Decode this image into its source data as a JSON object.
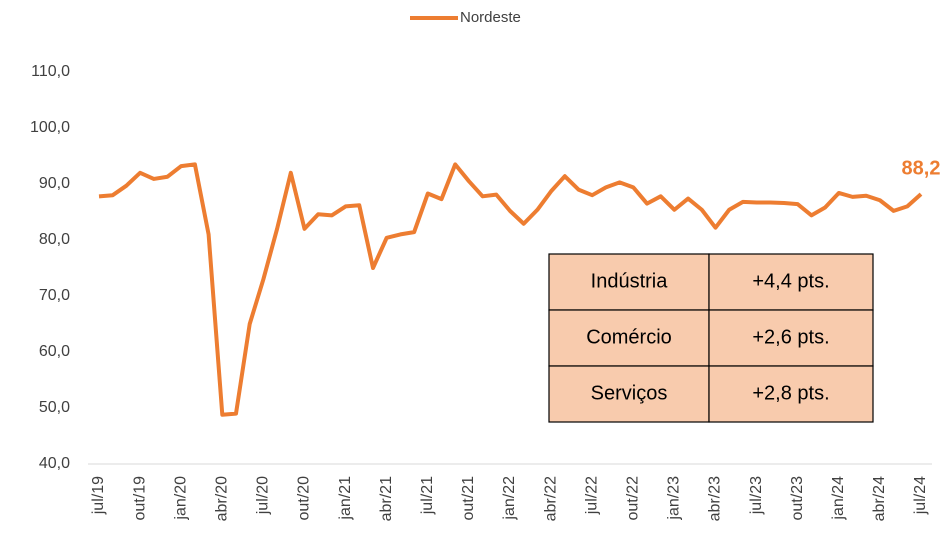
{
  "chart_data": {
    "type": "line",
    "categories": [
      "jul/19",
      null,
      null,
      "out/19",
      null,
      null,
      "jan/20",
      null,
      null,
      "abr/20",
      null,
      null,
      "jul/20",
      null,
      null,
      "out/20",
      null,
      null,
      "jan/21",
      null,
      null,
      "abr/21",
      null,
      null,
      "jul/21",
      null,
      null,
      "out/21",
      null,
      null,
      "jan/22",
      null,
      null,
      "abr/22",
      null,
      null,
      "jul/22",
      null,
      null,
      "out/22",
      null,
      null,
      "jan/23",
      null,
      null,
      "abr/23",
      null,
      null,
      "jul/23",
      null,
      null,
      "out/23",
      null,
      null,
      "jan/24",
      null,
      null,
      "abr/24",
      null,
      null,
      "jul/24"
    ],
    "series": [
      {
        "name": "Nordeste",
        "color": "#ed7d31",
        "values": [
          87.8,
          88,
          89.7,
          92,
          90.9,
          91.3,
          93.2,
          93.5,
          81,
          48.8,
          49,
          65,
          73,
          82,
          92,
          82,
          84.6,
          84.4,
          86,
          86.2,
          75,
          80.4,
          81,
          81.4,
          88.3,
          87.3,
          93.5,
          90.5,
          87.8,
          88.1,
          85.2,
          82.9,
          85.4,
          88.7,
          91.4,
          89,
          88,
          89.4,
          90.3,
          89.4,
          86.5,
          87.8,
          85.4,
          87.4,
          85.4,
          82.2,
          85.4,
          86.8,
          86.7,
          86.7,
          86.6,
          86.4,
          84.4,
          85.8,
          88.4,
          87.7,
          87.9,
          87.1,
          85.2,
          86,
          88.2
        ],
        "value_labels": [
          null,
          null,
          null,
          null,
          null,
          null,
          null,
          null,
          null,
          null,
          null,
          null,
          null,
          null,
          null,
          null,
          null,
          null,
          null,
          null,
          null,
          null,
          null,
          null,
          null,
          null,
          null,
          null,
          null,
          null,
          null,
          null,
          null,
          null,
          null,
          null,
          null,
          null,
          null,
          null,
          null,
          null,
          null,
          null,
          null,
          null,
          null,
          null,
          null,
          null,
          null,
          null,
          null,
          null,
          null,
          null,
          null,
          null,
          null,
          null,
          "88,2"
        ]
      }
    ],
    "ylim": [
      40,
      110
    ],
    "yticks": [
      {
        "value": 40,
        "label": "40,0"
      },
      {
        "value": 50,
        "label": "50,0"
      },
      {
        "value": 60,
        "label": "60,0"
      },
      {
        "value": 70,
        "label": "70,0"
      },
      {
        "value": 80,
        "label": "80,0"
      },
      {
        "value": 90,
        "label": "90,0"
      },
      {
        "value": 100,
        "label": "100,0"
      },
      {
        "value": 110,
        "label": "110,0"
      }
    ],
    "grid": false,
    "legend": "top",
    "table": {
      "rows": [
        [
          "Indústria",
          "+4,4 pts."
        ],
        [
          "Comércio",
          "+2,6 pts."
        ],
        [
          "Serviços",
          "+2,8 pts."
        ]
      ],
      "fill": "#f8cbad"
    }
  }
}
